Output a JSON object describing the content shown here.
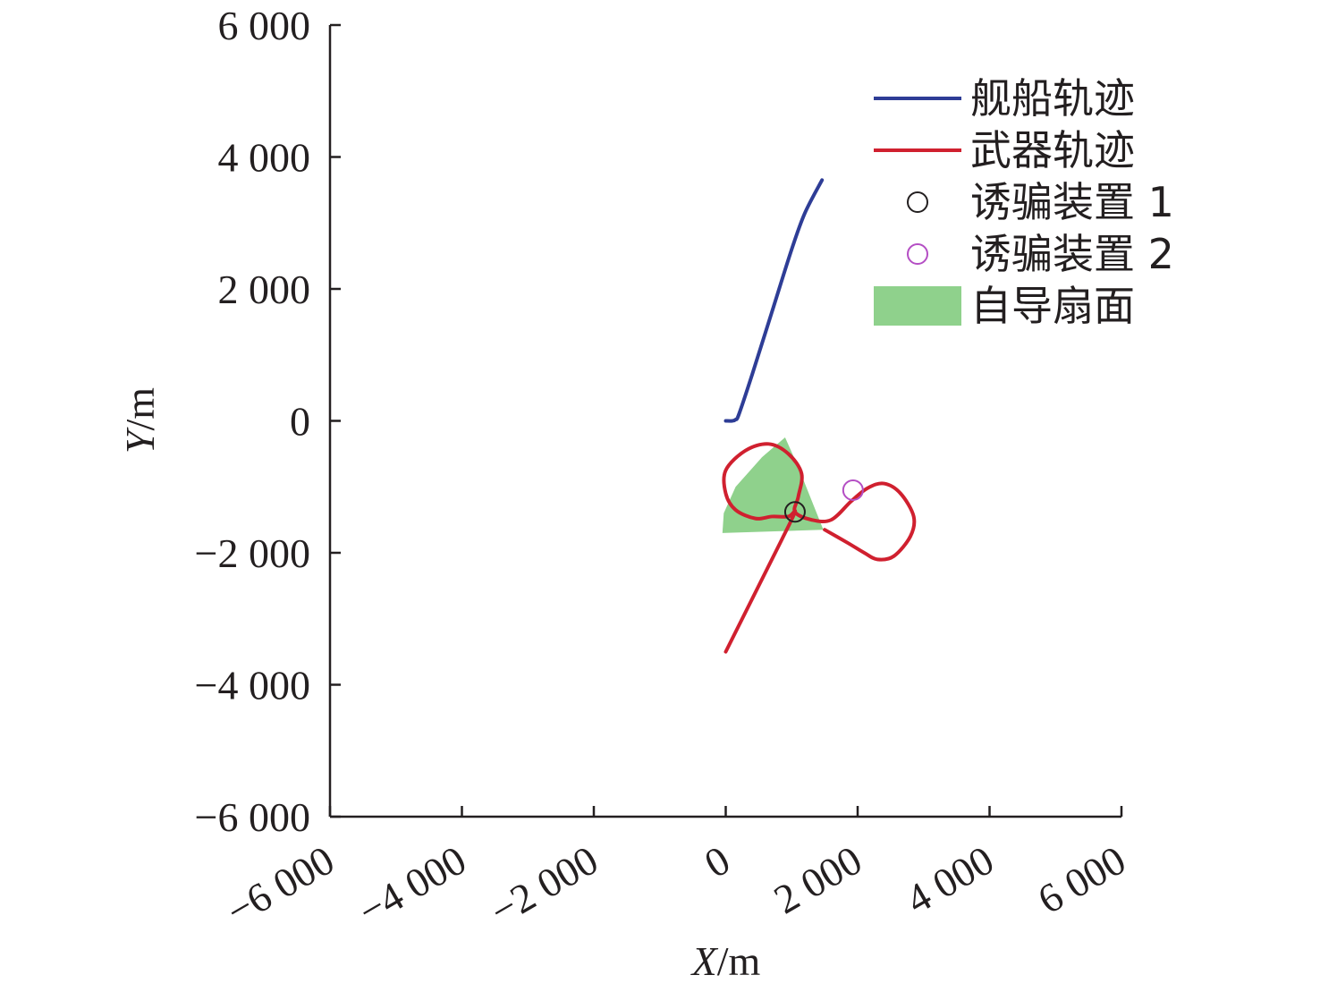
{
  "chart_data": {
    "type": "line",
    "xlabel": "X/m",
    "ylabel": "Y/m",
    "xlim": [
      -6000,
      6000
    ],
    "ylim": [
      -6000,
      6000
    ],
    "x_ticks": [
      {
        "value": -6000,
        "label": "−6 000"
      },
      {
        "value": -4000,
        "label": "−4 000"
      },
      {
        "value": -2000,
        "label": "−2 000"
      },
      {
        "value": 0,
        "label": "0"
      },
      {
        "value": 2000,
        "label": "2 000"
      },
      {
        "value": 4000,
        "label": "4 000"
      },
      {
        "value": 6000,
        "label": "6 000"
      }
    ],
    "y_ticks": [
      {
        "value": 6000,
        "label": "6 000"
      },
      {
        "value": 4000,
        "label": "4 000"
      },
      {
        "value": 2000,
        "label": "2 000"
      },
      {
        "value": 0,
        "label": "0"
      },
      {
        "value": -2000,
        "label": "−2 000"
      },
      {
        "value": -4000,
        "label": "−4 000"
      },
      {
        "value": -6000,
        "label": "−6 000"
      }
    ],
    "grid": false,
    "legend_position": "top-right",
    "series": [
      {
        "name": "舰船轨迹",
        "kind": "line",
        "color": "#2e3d96",
        "points": [
          [
            0,
            0
          ],
          [
            100,
            0
          ],
          [
            150,
            20
          ],
          [
            200,
            100
          ],
          [
            400,
            700
          ],
          [
            700,
            1650
          ],
          [
            1000,
            2600
          ],
          [
            1200,
            3150
          ],
          [
            1460,
            3650
          ]
        ]
      },
      {
        "name": "武器轨迹",
        "kind": "line",
        "color": "#d0202f",
        "points": [
          [
            0,
            -3500
          ],
          [
            300,
            -2900
          ],
          [
            600,
            -2300
          ],
          [
            850,
            -1800
          ],
          [
            1050,
            -1380
          ],
          [
            950,
            -1450
          ],
          [
            700,
            -1450
          ],
          [
            450,
            -1480
          ],
          [
            150,
            -1350
          ],
          [
            0,
            -1100
          ],
          [
            0,
            -750
          ],
          [
            300,
            -450
          ],
          [
            650,
            -350
          ],
          [
            950,
            -500
          ],
          [
            1150,
            -800
          ],
          [
            1100,
            -1150
          ],
          [
            1050,
            -1380
          ],
          [
            1300,
            -1500
          ],
          [
            1600,
            -1500
          ],
          [
            1900,
            -1220
          ],
          [
            2150,
            -1020
          ],
          [
            2400,
            -950
          ],
          [
            2650,
            -1100
          ],
          [
            2850,
            -1450
          ],
          [
            2800,
            -1750
          ],
          [
            2550,
            -2050
          ],
          [
            2300,
            -2100
          ],
          [
            2100,
            -2000
          ],
          [
            1850,
            -1850
          ],
          [
            1500,
            -1650
          ]
        ]
      },
      {
        "name": "诱骗装置 1",
        "kind": "marker",
        "color": "#231f20",
        "points": [
          [
            1050,
            -1380
          ]
        ]
      },
      {
        "name": "诱骗装置 2",
        "kind": "marker",
        "color": "#b44ec4",
        "points": [
          [
            1930,
            -1050
          ]
        ]
      },
      {
        "name": "自导扇面",
        "kind": "area",
        "color": "#8fd18c",
        "points": [
          [
            -50,
            -1700
          ],
          [
            1480,
            -1650
          ],
          [
            1100,
            -700
          ],
          [
            900,
            -250
          ],
          [
            550,
            -550
          ],
          [
            150,
            -1000
          ],
          [
            -30,
            -1400
          ]
        ]
      }
    ]
  }
}
